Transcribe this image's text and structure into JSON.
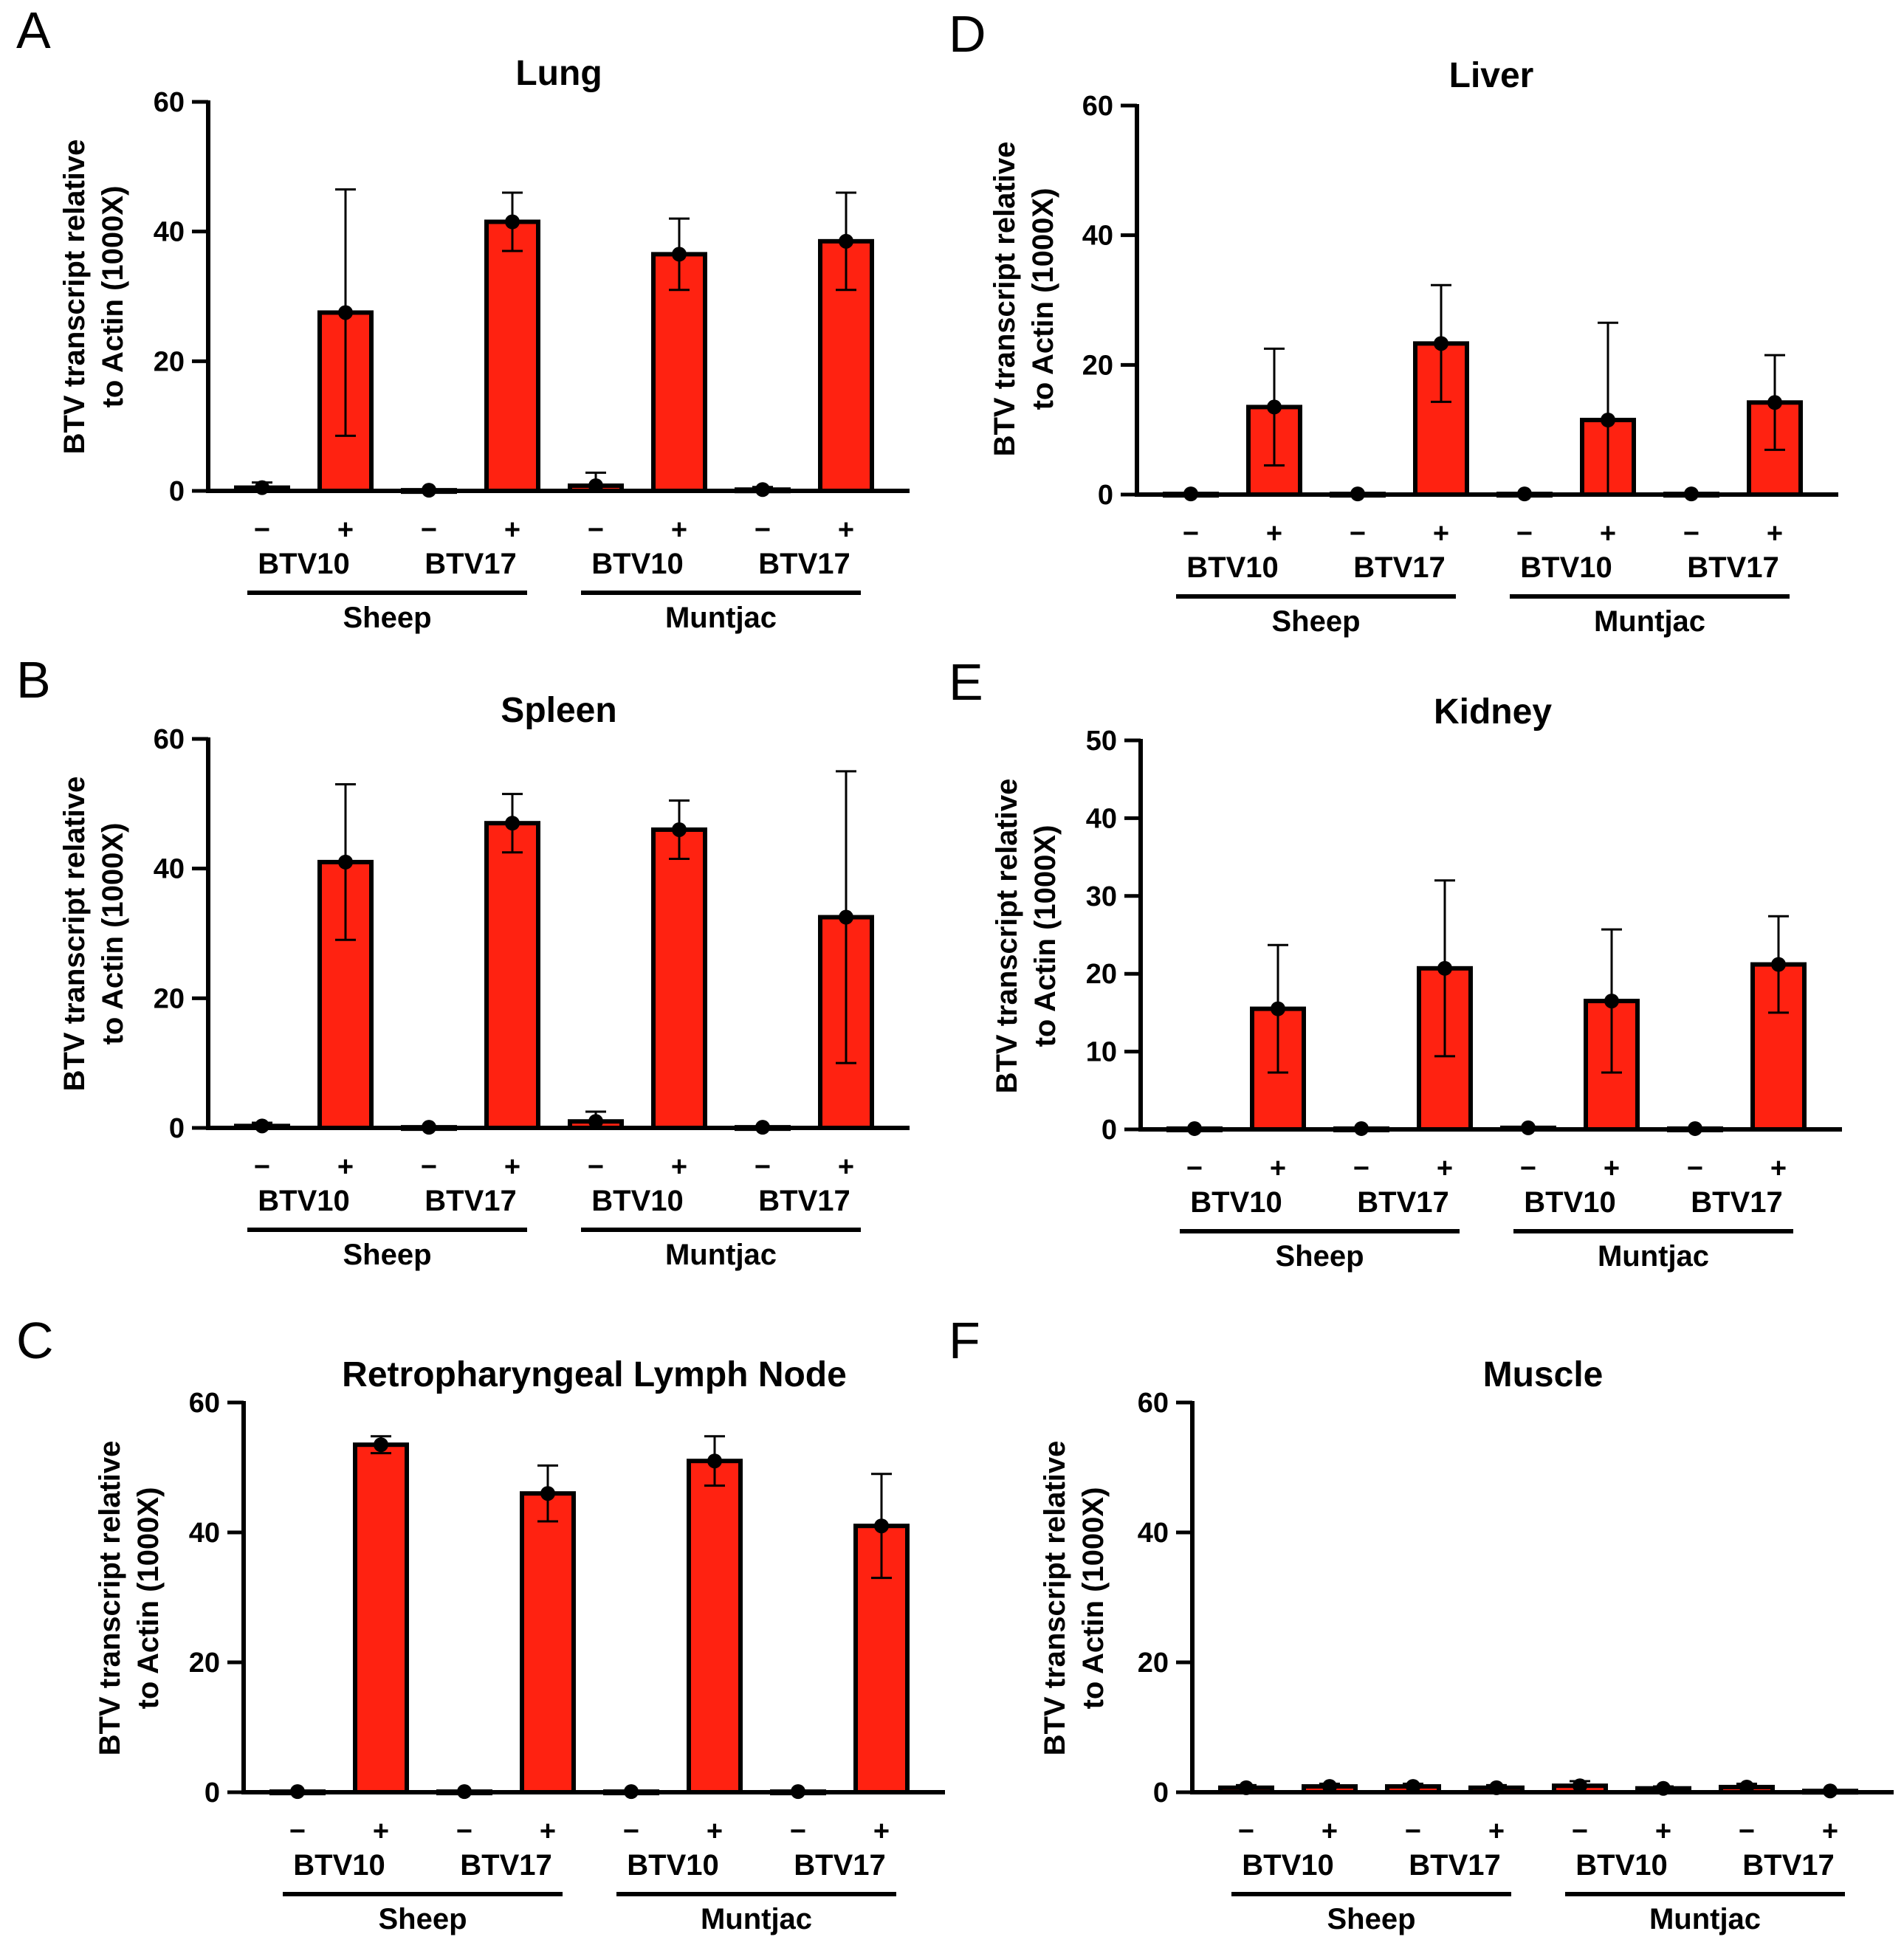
{
  "chart_data": [
    {
      "panel": "A",
      "title": "Lung",
      "type": "bar",
      "ylabel": [
        "BTV transcript  relative",
        "to Actin (1000X)"
      ],
      "ylim": [
        0,
        60
      ],
      "yticks": [
        0,
        20,
        40,
        60
      ],
      "bars": [
        {
          "sign": "−",
          "value": 0.5,
          "err": 0.8
        },
        {
          "sign": "+",
          "value": 27.5,
          "err": 19
        },
        {
          "sign": "−",
          "value": 0.1,
          "err": 0
        },
        {
          "sign": "+",
          "value": 41.5,
          "err": 4.5
        },
        {
          "sign": "−",
          "value": 0.8,
          "err": 2
        },
        {
          "sign": "+",
          "value": 36.5,
          "err": 5.5
        },
        {
          "sign": "−",
          "value": 0.2,
          "err": 0.4
        },
        {
          "sign": "+",
          "value": 38.5,
          "err": 7.5
        }
      ],
      "categories": [
        "BTV10",
        "BTV17",
        "BTV10",
        "BTV17"
      ],
      "groups": [
        "Sheep",
        "Muntjac"
      ]
    },
    {
      "panel": "B",
      "title": "Spleen",
      "type": "bar",
      "ylabel": [
        "BTV transcript  relative",
        "to Actin (1000X)"
      ],
      "ylim": [
        0,
        60
      ],
      "yticks": [
        0,
        20,
        40,
        60
      ],
      "bars": [
        {
          "sign": "−",
          "value": 0.3,
          "err": 0.5
        },
        {
          "sign": "+",
          "value": 41,
          "err": 12
        },
        {
          "sign": "−",
          "value": 0.1,
          "err": 0
        },
        {
          "sign": "+",
          "value": 47,
          "err": 4.5
        },
        {
          "sign": "−",
          "value": 1,
          "err": 1.5
        },
        {
          "sign": "+",
          "value": 46,
          "err": 4.5
        },
        {
          "sign": "−",
          "value": 0.1,
          "err": 0
        },
        {
          "sign": "+",
          "value": 32.5,
          "err": 22.5
        }
      ],
      "categories": [
        "BTV10",
        "BTV17",
        "BTV10",
        "BTV17"
      ],
      "groups": [
        "Sheep",
        "Muntjac"
      ]
    },
    {
      "panel": "C",
      "title": "Retropharyngeal Lymph Node",
      "type": "bar",
      "ylabel": [
        "BTV transcript  relative",
        "to Actin (1000X)"
      ],
      "ylim": [
        0,
        60
      ],
      "yticks": [
        0,
        20,
        40,
        60
      ],
      "bars": [
        {
          "sign": "−",
          "value": 0.1,
          "err": 0
        },
        {
          "sign": "+",
          "value": 53.5,
          "err": 1.3
        },
        {
          "sign": "−",
          "value": 0.1,
          "err": 0
        },
        {
          "sign": "+",
          "value": 46,
          "err": 4.3
        },
        {
          "sign": "−",
          "value": 0.1,
          "err": 0
        },
        {
          "sign": "+",
          "value": 51,
          "err": 3.8
        },
        {
          "sign": "−",
          "value": 0.1,
          "err": 0
        },
        {
          "sign": "+",
          "value": 41,
          "err": 8
        }
      ],
      "categories": [
        "BTV10",
        "BTV17",
        "BTV10",
        "BTV17"
      ],
      "groups": [
        "Sheep",
        "Muntjac"
      ]
    },
    {
      "panel": "D",
      "title": "Liver",
      "type": "bar",
      "ylabel": [
        "BTV transcript  relative",
        "to Actin (1000X)"
      ],
      "ylim": [
        0,
        60
      ],
      "yticks": [
        0,
        20,
        40,
        60
      ],
      "bars": [
        {
          "sign": "−",
          "value": 0.1,
          "err": 0
        },
        {
          "sign": "+",
          "value": 13.5,
          "err": 9
        },
        {
          "sign": "−",
          "value": 0.1,
          "err": 0
        },
        {
          "sign": "+",
          "value": 23.3,
          "err": 9
        },
        {
          "sign": "−",
          "value": 0.1,
          "err": 0
        },
        {
          "sign": "+",
          "value": 11.5,
          "err": 15
        },
        {
          "sign": "−",
          "value": 0.1,
          "err": 0
        },
        {
          "sign": "+",
          "value": 14.2,
          "err": 7.3
        }
      ],
      "categories": [
        "BTV10",
        "BTV17",
        "BTV10",
        "BTV17"
      ],
      "groups": [
        "Sheep",
        "Muntjac"
      ]
    },
    {
      "panel": "E",
      "title": "Kidney",
      "type": "bar",
      "ylabel": [
        "BTV transcript  relative",
        "to Actin (1000X)"
      ],
      "ylim": [
        0,
        50
      ],
      "yticks": [
        0,
        10,
        20,
        30,
        40,
        50
      ],
      "bars": [
        {
          "sign": "−",
          "value": 0.1,
          "err": 0
        },
        {
          "sign": "+",
          "value": 15.5,
          "err": 8.2
        },
        {
          "sign": "−",
          "value": 0.1,
          "err": 0
        },
        {
          "sign": "+",
          "value": 20.7,
          "err": 11.3
        },
        {
          "sign": "−",
          "value": 0.2,
          "err": 0
        },
        {
          "sign": "+",
          "value": 16.5,
          "err": 9.2
        },
        {
          "sign": "−",
          "value": 0.1,
          "err": 0
        },
        {
          "sign": "+",
          "value": 21.2,
          "err": 6.2
        }
      ],
      "categories": [
        "BTV10",
        "BTV17",
        "BTV10",
        "BTV17"
      ],
      "groups": [
        "Sheep",
        "Muntjac"
      ]
    },
    {
      "panel": "F",
      "title": "Muscle",
      "type": "bar",
      "ylabel": [
        "BTV transcript  relative",
        "to Actin (1000X)"
      ],
      "ylim": [
        0,
        60
      ],
      "yticks": [
        0,
        20,
        40,
        60
      ],
      "bars": [
        {
          "sign": "−",
          "value": 0.7,
          "err": 0.4
        },
        {
          "sign": "+",
          "value": 0.9,
          "err": 0.4
        },
        {
          "sign": "−",
          "value": 0.9,
          "err": 0.4
        },
        {
          "sign": "+",
          "value": 0.7,
          "err": 0.4
        },
        {
          "sign": "−",
          "value": 1.0,
          "err": 0.7
        },
        {
          "sign": "+",
          "value": 0.6,
          "err": 0.3
        },
        {
          "sign": "−",
          "value": 0.8,
          "err": 0.5
        },
        {
          "sign": "+",
          "value": 0.2,
          "err": 0
        }
      ],
      "categories": [
        "BTV10",
        "BTV17",
        "BTV10",
        "BTV17"
      ],
      "groups": [
        "Sheep",
        "Muntjac"
      ]
    }
  ],
  "colors": {
    "bar_fill": "#ff2211",
    "bar_stroke": "#000000",
    "axis": "#000000"
  }
}
